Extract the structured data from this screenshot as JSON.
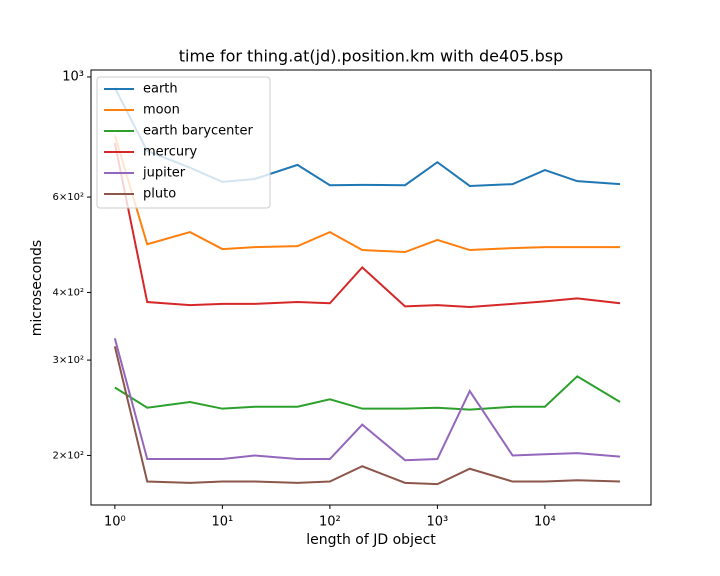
{
  "chart_data": {
    "type": "line",
    "title": "time for thing.at(jd).position.km with de405.bsp",
    "x_label": "length of JD object",
    "y_label": "microseconds",
    "x": [
      1,
      2,
      5,
      10,
      20,
      50,
      100,
      200,
      500,
      1000,
      2000,
      5000,
      10000,
      20000,
      50000
    ],
    "xscale": "log",
    "yscale": "log",
    "xlim": [
      0.6,
      97000
    ],
    "ylim": [
      162,
      1030
    ],
    "xticks": [
      {
        "value": 1,
        "label": "10⁰"
      },
      {
        "value": 10,
        "label": "10¹"
      },
      {
        "value": 100,
        "label": "10²"
      },
      {
        "value": 1000,
        "label": "10³"
      },
      {
        "value": 10000,
        "label": "10⁴"
      }
    ],
    "yticks": [
      {
        "value": 200,
        "label": "2×10²"
      },
      {
        "value": 300,
        "label": "3×10²"
      },
      {
        "value": 400,
        "label": "4×10²"
      },
      {
        "value": 600,
        "label": "6×10²"
      },
      {
        "value": 1000,
        "label": "10³"
      }
    ],
    "legend": "upper left",
    "series": [
      {
        "name": "earth",
        "color": "#1f77b4",
        "values": [
          955,
          730,
          680,
          640,
          648,
          688,
          631,
          632,
          631,
          696,
          629,
          634,
          673,
          642,
          634
        ]
      },
      {
        "name": "moon",
        "color": "#ff7f0e",
        "values": [
          780,
          491,
          517,
          481,
          485,
          487,
          517,
          479,
          475,
          500,
          479,
          483,
          485,
          485,
          485
        ]
      },
      {
        "name": "earth barycenter",
        "color": "#2ca02c",
        "values": [
          267,
          245,
          251,
          244,
          246,
          246,
          254,
          244,
          244,
          245,
          243,
          246,
          246,
          280,
          251
        ]
      },
      {
        "name": "mercury",
        "color": "#d62728",
        "values": [
          755,
          384,
          379,
          381,
          381,
          384,
          382,
          445,
          377,
          379,
          376,
          381,
          385,
          390,
          382
        ]
      },
      {
        "name": "jupiter",
        "color": "#9467bd",
        "values": [
          329,
          197,
          197,
          197,
          200,
          197,
          197,
          228,
          196,
          197,
          263,
          200,
          201,
          202,
          199
        ]
      },
      {
        "name": "pluto",
        "color": "#8c564b",
        "values": [
          318,
          179,
          178,
          179,
          179,
          178,
          179,
          191,
          178,
          177,
          189,
          179,
          179,
          180,
          179
        ]
      }
    ]
  }
}
